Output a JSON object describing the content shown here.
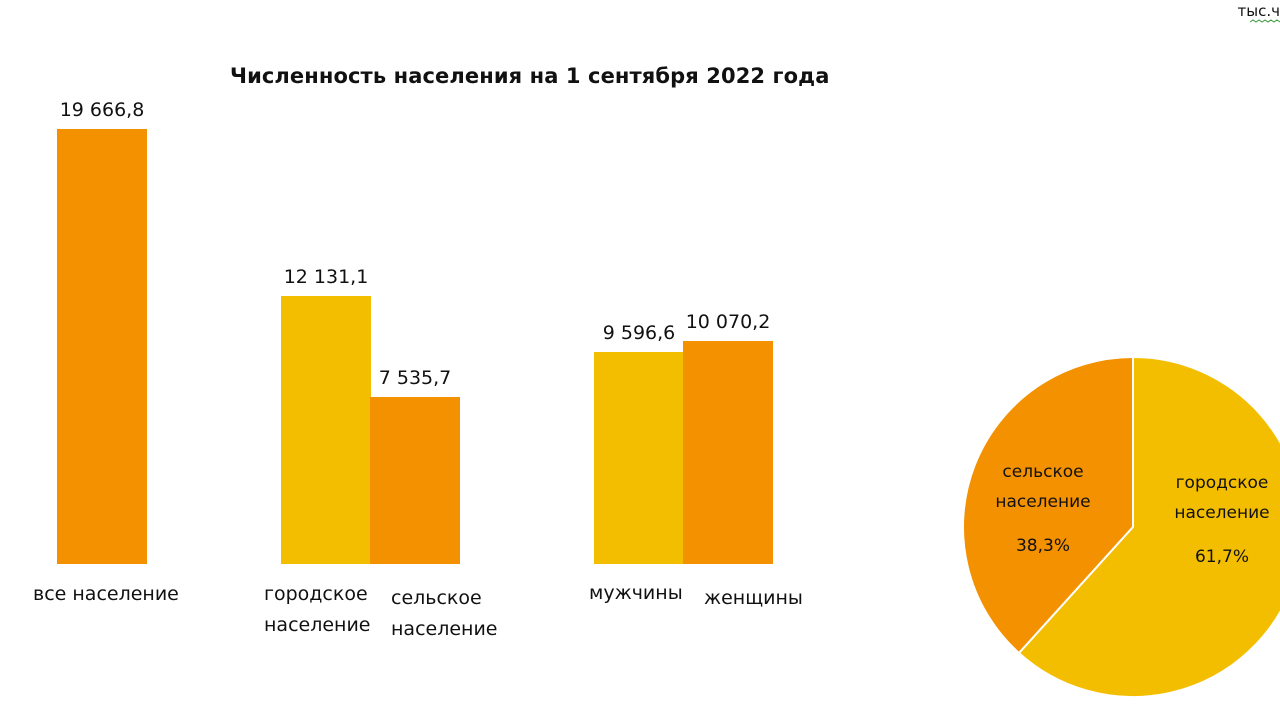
{
  "unit": "тыс.ч",
  "colors": {
    "orange": "#F39100",
    "yellow": "#F4BE00",
    "pie_stroke": "#FFFFFF"
  },
  "chart_data": [
    {
      "type": "bar",
      "title": "Численность населения на 1 сентября 2022 года",
      "categories": [
        "все население",
        "городское население",
        "сельское население",
        "мужчины",
        "женщины"
      ],
      "values": [
        19666.8,
        12131.1,
        7535.7,
        9596.6,
        10070.2
      ],
      "value_labels": [
        "19 666,8",
        "12 131,1",
        "7 535,7",
        "9 596,6",
        "10 070,2"
      ],
      "bar_colors": [
        "orange",
        "yellow",
        "orange",
        "yellow",
        "orange"
      ],
      "groups": [
        [
          0
        ],
        [
          1,
          2
        ],
        [
          3,
          4
        ]
      ],
      "grid": false
    },
    {
      "type": "pie",
      "slices": [
        {
          "label": "сельское население",
          "value": 38.3,
          "text": "38,3%",
          "color": "orange"
        },
        {
          "label": "городское население",
          "value": 61.7,
          "text": "61,7%",
          "color": "yellow"
        }
      ]
    }
  ]
}
